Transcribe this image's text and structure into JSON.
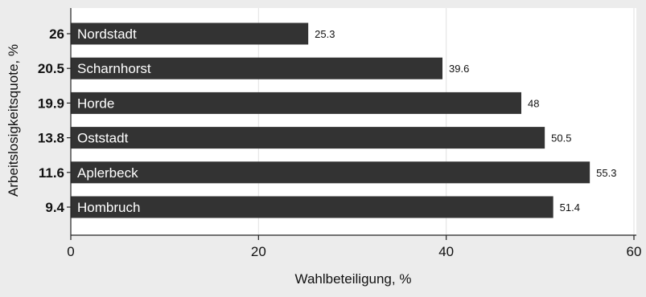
{
  "chart_data": {
    "type": "bar",
    "orientation": "horizontal",
    "categories": [
      "Nordstadt",
      "Scharnhorst",
      "Horde",
      "Oststadt",
      "Aplerbeck",
      "Hombruch"
    ],
    "y_tick_labels": [
      "26",
      "20.5",
      "19.9",
      "13.8",
      "11.6",
      "9.4"
    ],
    "values": [
      25.3,
      39.6,
      48,
      50.5,
      55.3,
      51.4
    ],
    "value_labels": [
      "25.3",
      "39.6",
      "48",
      "50.5",
      "55.3",
      "51.4"
    ],
    "xlabel": "Wahlbeteiligung, %",
    "ylabel": "Arbeitslosigkeitsquote, %",
    "xlim": [
      0,
      60
    ],
    "x_ticks": [
      0,
      20,
      40,
      60
    ],
    "x_tick_labels": [
      "0",
      "20",
      "40",
      "60"
    ],
    "grid": "vertical",
    "bar_color": "#333333",
    "background_color": "#ececec",
    "plot_background_color": "#ffffff"
  }
}
